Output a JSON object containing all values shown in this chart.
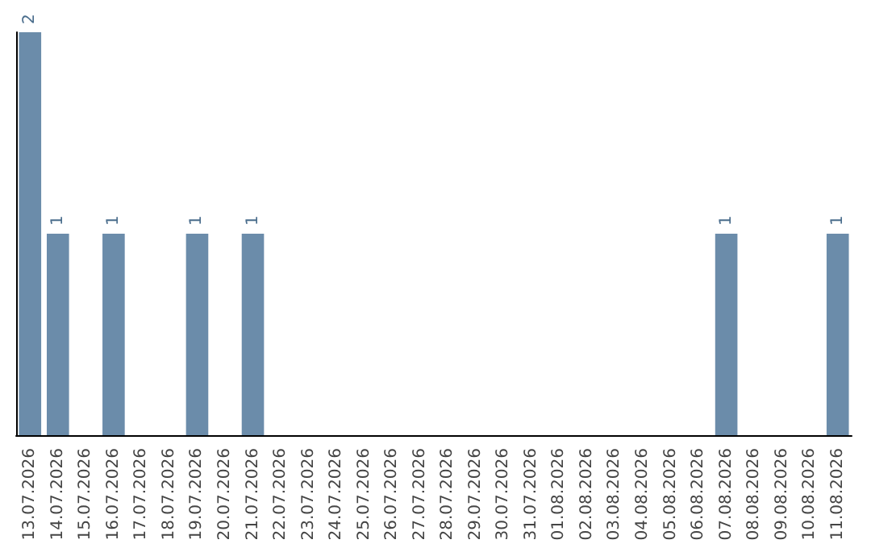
{
  "chart_data": {
    "type": "bar",
    "categories": [
      "13.07.2026",
      "14.07.2026",
      "15.07.2026",
      "16.07.2026",
      "17.07.2026",
      "18.07.2026",
      "19.07.2026",
      "20.07.2026",
      "21.07.2026",
      "22.07.2026",
      "23.07.2026",
      "24.07.2026",
      "25.07.2026",
      "26.07.2026",
      "27.07.2026",
      "28.07.2026",
      "29.07.2026",
      "30.07.2026",
      "31.07.2026",
      "01.08.2026",
      "02.08.2026",
      "03.08.2026",
      "04.08.2026",
      "05.08.2026",
      "06.08.2026",
      "07.08.2026",
      "08.08.2026",
      "09.08.2026",
      "10.08.2026",
      "11.08.2026"
    ],
    "values": [
      2,
      1,
      0,
      1,
      0,
      0,
      1,
      0,
      1,
      0,
      0,
      0,
      0,
      0,
      0,
      0,
      0,
      0,
      0,
      0,
      0,
      0,
      0,
      0,
      0,
      1,
      0,
      0,
      0,
      1
    ],
    "value_labels": [
      "2",
      "1",
      null,
      "1",
      null,
      null,
      "1",
      null,
      "1",
      null,
      null,
      null,
      null,
      null,
      null,
      null,
      null,
      null,
      null,
      null,
      null,
      null,
      null,
      null,
      null,
      "1",
      null,
      null,
      null,
      "1"
    ],
    "color": "#6b8caa",
    "tick_labels": "x"
  }
}
